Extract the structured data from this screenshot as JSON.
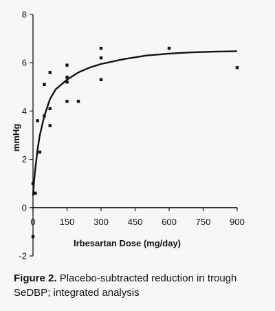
{
  "chart_data": {
    "type": "scatter",
    "xlabel": "Irbesartan Dose (mg/day)",
    "ylabel": "mmHg",
    "xlim": [
      0,
      900
    ],
    "ylim": [
      -2,
      8
    ],
    "x_ticks": [
      0,
      150,
      300,
      450,
      600,
      750,
      900
    ],
    "y_ticks": [
      -2,
      0,
      2,
      4,
      6,
      8
    ],
    "grid": false,
    "points": [
      {
        "x": 0,
        "y": -1.2
      },
      {
        "x": 0,
        "y": 1.0
      },
      {
        "x": 10,
        "y": 0.6
      },
      {
        "x": 20,
        "y": 3.6
      },
      {
        "x": 30,
        "y": 2.3
      },
      {
        "x": 50,
        "y": 3.8
      },
      {
        "x": 50,
        "y": 5.1
      },
      {
        "x": 75,
        "y": 3.4
      },
      {
        "x": 75,
        "y": 4.1
      },
      {
        "x": 75,
        "y": 5.6
      },
      {
        "x": 150,
        "y": 4.4
      },
      {
        "x": 150,
        "y": 5.2
      },
      {
        "x": 150,
        "y": 5.4
      },
      {
        "x": 150,
        "y": 5.9
      },
      {
        "x": 200,
        "y": 4.4
      },
      {
        "x": 300,
        "y": 5.3
      },
      {
        "x": 300,
        "y": 6.2
      },
      {
        "x": 300,
        "y": 6.6
      },
      {
        "x": 600,
        "y": 6.6
      },
      {
        "x": 900,
        "y": 5.8
      }
    ],
    "curve": {
      "x": [
        0,
        5,
        10,
        20,
        30,
        50,
        75,
        100,
        150,
        200,
        250,
        300,
        400,
        500,
        600,
        700,
        800,
        900
      ],
      "y": [
        0.5,
        1.1,
        1.6,
        2.4,
        3.0,
        3.8,
        4.5,
        4.9,
        5.3,
        5.6,
        5.8,
        5.95,
        6.15,
        6.3,
        6.38,
        6.43,
        6.46,
        6.48
      ]
    }
  },
  "caption": {
    "label": "Figure 2.",
    "text": "Placebo-subtracted reduction in trough SeDBP; integrated analysis"
  }
}
